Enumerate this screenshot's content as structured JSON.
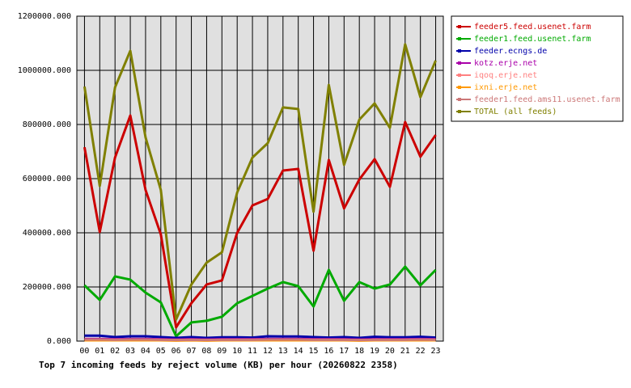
{
  "chart_data": {
    "type": "line",
    "title": "Top 7 incoming feeds by reject volume (KB) per hour (20260822 2358)",
    "categories": [
      "00",
      "01",
      "02",
      "03",
      "04",
      "05",
      "06",
      "07",
      "08",
      "09",
      "10",
      "11",
      "12",
      "13",
      "14",
      "15",
      "16",
      "17",
      "18",
      "19",
      "20",
      "21",
      "22",
      "23"
    ],
    "series": [
      {
        "name": "feeder5.feed.usenet.farm",
        "color": "#cc0000",
        "values": [
          716000,
          403000,
          678000,
          833000,
          558000,
          394000,
          51000,
          140000,
          209000,
          224000,
          400000,
          501000,
          525000,
          630000,
          636000,
          334000,
          669000,
          490000,
          597000,
          672000,
          570000,
          809000,
          681000,
          761000
        ]
      },
      {
        "name": "feeder1.feed.usenet.farm",
        "color": "#00aa00",
        "values": [
          206000,
          152000,
          239000,
          227000,
          179000,
          143000,
          18000,
          69000,
          75000,
          90000,
          140000,
          167000,
          194000,
          218000,
          203000,
          128000,
          263000,
          149000,
          218000,
          194000,
          209000,
          275000,
          206000,
          263000
        ]
      },
      {
        "name": "feeder.ecngs.de",
        "color": "#0000aa",
        "values": [
          20000,
          20000,
          15000,
          18000,
          18000,
          15000,
          12000,
          15000,
          12000,
          14000,
          14000,
          13000,
          18000,
          17000,
          17000,
          15000,
          13000,
          15000,
          12000,
          16000,
          14000,
          14000,
          16000,
          13000
        ]
      },
      {
        "name": "kotz.erje.net",
        "color": "#aa00aa",
        "values": [
          8000,
          8000,
          7000,
          8000,
          8000,
          7000,
          6000,
          7000,
          6000,
          7000,
          7000,
          7000,
          8000,
          8000,
          8000,
          7000,
          7000,
          7000,
          6000,
          7000,
          7000,
          7000,
          8000,
          7000
        ]
      },
      {
        "name": "iqoq.erje.net",
        "color": "#ff8080",
        "values": [
          5000,
          5000,
          5000,
          5000,
          5000,
          5000,
          4000,
          5000,
          4000,
          5000,
          5000,
          5000,
          5000,
          5000,
          5000,
          5000,
          5000,
          5000,
          4000,
          5000,
          5000,
          5000,
          5000,
          5000
        ]
      },
      {
        "name": "ixni.erje.net",
        "color": "#ff9900",
        "values": [
          3000,
          3000,
          3000,
          3000,
          3000,
          3000,
          2000,
          3000,
          2000,
          3000,
          3000,
          3000,
          3000,
          3000,
          3000,
          3000,
          3000,
          3000,
          2000,
          3000,
          3000,
          3000,
          3000,
          3000
        ]
      },
      {
        "name": "feeder1.feed.ams11.usenet.farm",
        "color": "#cc7777",
        "values": [
          6000,
          6000,
          5000,
          6000,
          6000,
          5000,
          4000,
          5000,
          4000,
          5000,
          5000,
          5000,
          6000,
          6000,
          6000,
          5000,
          5000,
          5000,
          4000,
          5000,
          5000,
          5000,
          6000,
          5000
        ]
      },
      {
        "name": "TOTAL (all feeds)",
        "color": "#808000",
        "values": [
          940000,
          573000,
          937000,
          1072000,
          752000,
          558000,
          80000,
          209000,
          290000,
          328000,
          549000,
          678000,
          731000,
          863000,
          857000,
          478000,
          946000,
          651000,
          818000,
          878000,
          788000,
          1096000,
          901000,
          1036000
        ]
      }
    ],
    "ylim": [
      0,
      1200000
    ],
    "yticks": [
      {
        "value": 0,
        "label": "0.000"
      },
      {
        "value": 200000,
        "label": "200000.000"
      },
      {
        "value": 400000,
        "label": "400000.000"
      },
      {
        "value": 600000,
        "label": "600000.000"
      },
      {
        "value": 800000,
        "label": "800000.000"
      },
      {
        "value": 1000000,
        "label": "1000000.000"
      },
      {
        "value": 1200000,
        "label": "1200000.000"
      }
    ],
    "grid": true
  }
}
